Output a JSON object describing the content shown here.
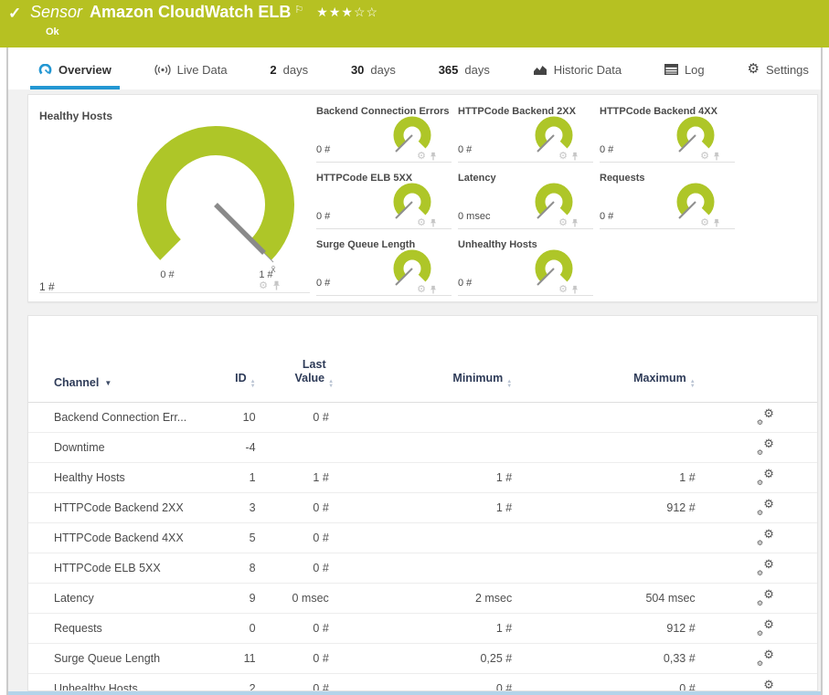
{
  "header": {
    "kind_label": "Sensor",
    "title": "Amazon CloudWatch ELB",
    "status": "Ok",
    "stars_filled": 3,
    "stars_total": 5
  },
  "tabs": [
    {
      "label": "Overview",
      "icon": "gauge-icon",
      "active": true
    },
    {
      "label": "Live Data",
      "icon": "live-data-icon",
      "active": false
    },
    {
      "prefix": "2",
      "label": "days",
      "active": false
    },
    {
      "prefix": "30",
      "label": "days",
      "active": false
    },
    {
      "prefix": "365",
      "label": "days",
      "active": false
    },
    {
      "label": "Historic Data",
      "icon": "historic-data-icon",
      "active": false
    },
    {
      "label": "Log",
      "icon": "log-icon",
      "active": false
    },
    {
      "label": "Settings",
      "icon": "settings-gear-icon",
      "active": false
    }
  ],
  "gauges": {
    "primary": {
      "title": "Healthy Hosts",
      "value": "1 #",
      "scale_min": "0 #",
      "scale_max": "1 #",
      "avg_marker": "x̄"
    },
    "small": [
      {
        "title": "Backend Connection Errors",
        "value": "0 #"
      },
      {
        "title": "HTTPCode Backend 2XX",
        "value": "0 #"
      },
      {
        "title": "HTTPCode Backend 4XX",
        "value": "0 #"
      },
      {
        "title": "HTTPCode ELB 5XX",
        "value": "0 #"
      },
      {
        "title": "Latency",
        "value": "0 msec"
      },
      {
        "title": "Requests",
        "value": "0 #"
      },
      {
        "title": "Surge Queue Length",
        "value": "0 #"
      },
      {
        "title": "Unhealthy Hosts",
        "value": "0 #"
      }
    ]
  },
  "table": {
    "columns": {
      "channel": "Channel",
      "id": "ID",
      "last_value": "Last Value",
      "minimum": "Minimum",
      "maximum": "Maximum"
    },
    "rows": [
      {
        "channel": "Backend Connection Err...",
        "id": "10",
        "last": "0 #",
        "min": "",
        "max": ""
      },
      {
        "channel": "Downtime",
        "id": "-4",
        "last": "",
        "min": "",
        "max": ""
      },
      {
        "channel": "Healthy Hosts",
        "id": "1",
        "last": "1 #",
        "min": "1 #",
        "max": "1 #"
      },
      {
        "channel": "HTTPCode Backend 2XX",
        "id": "3",
        "last": "0 #",
        "min": "1 #",
        "max": "912 #"
      },
      {
        "channel": "HTTPCode Backend 4XX",
        "id": "5",
        "last": "0 #",
        "min": "",
        "max": ""
      },
      {
        "channel": "HTTPCode ELB 5XX",
        "id": "8",
        "last": "0 #",
        "min": "",
        "max": ""
      },
      {
        "channel": "Latency",
        "id": "9",
        "last": "0 msec",
        "min": "2 msec",
        "max": "504 msec"
      },
      {
        "channel": "Requests",
        "id": "0",
        "last": "0 #",
        "min": "1 #",
        "max": "912 #"
      },
      {
        "channel": "Surge Queue Length",
        "id": "11",
        "last": "0 #",
        "min": "0,25 #",
        "max": "0,33 #"
      },
      {
        "channel": "Unhealthy Hosts",
        "id": "2",
        "last": "0 #",
        "min": "0 #",
        "max": "0 #"
      }
    ]
  },
  "colors": {
    "header_green": "#b6c122",
    "gauge_green": "#aec628",
    "needle_gray": "#8a8a8a",
    "active_tab_blue": "#2397d3",
    "table_header_navy": "#2e3b58",
    "bottom_bar_blue": "#b3d4ea"
  }
}
